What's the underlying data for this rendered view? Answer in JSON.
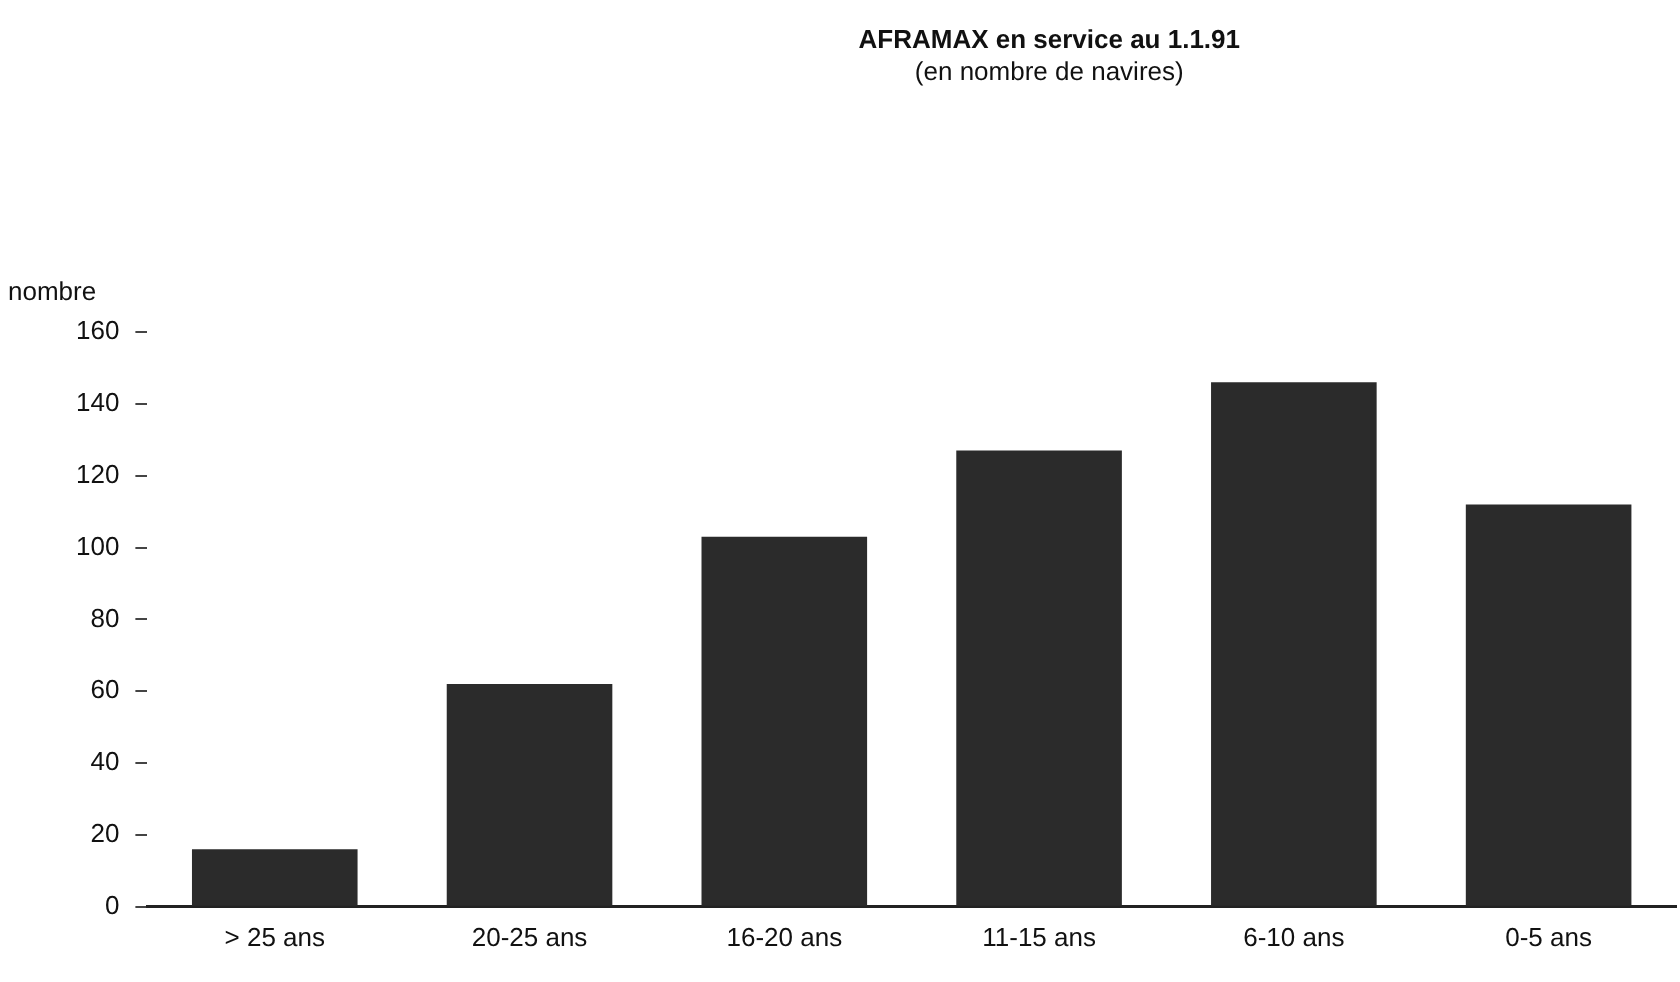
{
  "chart_data": {
    "type": "bar",
    "title": "AFRAMAX en service au 1.1.91",
    "subtitle": "(en nombre de navires)",
    "ylabel": "nombre",
    "categories": [
      "> 25 ans",
      "20-25 ans",
      "16-20 ans",
      "11-15 ans",
      "6-10 ans",
      "0-5 ans"
    ],
    "values": [
      16,
      62,
      103,
      127,
      146,
      112
    ],
    "color": "#2b2b2b",
    "ylim": [
      0,
      160
    ],
    "yticks": [
      0,
      20,
      40,
      60,
      80,
      100,
      120,
      140,
      160
    ],
    "grid": false,
    "legend": false
  }
}
